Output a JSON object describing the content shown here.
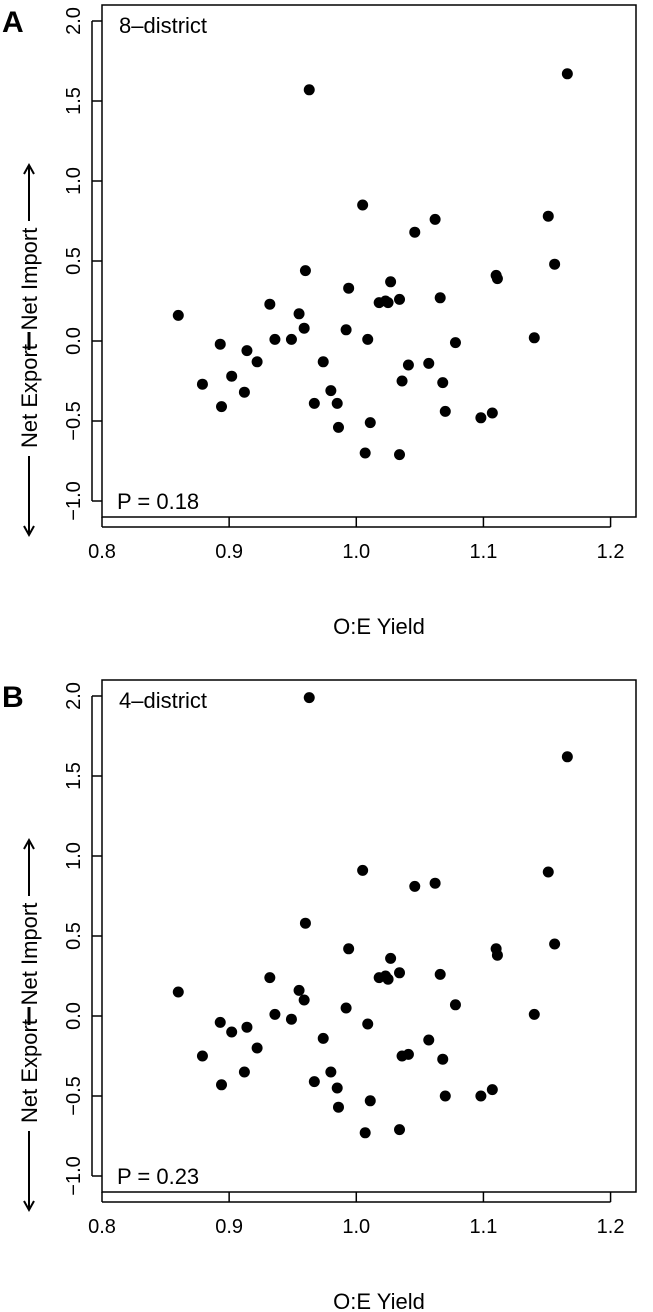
{
  "chart_data": [
    {
      "type": "scatter",
      "panel_label": "A",
      "title": "8–district",
      "annotation": "P = 0.18",
      "xlabel": "O:E Yield",
      "ylabel_bottom": "Net Export",
      "ylabel_top": "Net Import",
      "xlim": [
        0.8,
        1.22
      ],
      "ylim": [
        -1.1,
        2.1
      ],
      "xticks": [
        "0.8",
        "0.9",
        "1.0",
        "1.1",
        "1.2"
      ],
      "yticks": [
        "−1.0",
        "−0.5",
        "0.0",
        "0.5",
        "1.0",
        "1.5",
        "2.0"
      ],
      "points": [
        [
          0.86,
          0.16
        ],
        [
          0.879,
          -0.27
        ],
        [
          0.893,
          -0.02
        ],
        [
          0.894,
          -0.41
        ],
        [
          0.902,
          -0.22
        ],
        [
          0.912,
          -0.32
        ],
        [
          0.914,
          -0.06
        ],
        [
          0.922,
          -0.13
        ],
        [
          0.932,
          0.23
        ],
        [
          0.936,
          0.01
        ],
        [
          0.949,
          0.01
        ],
        [
          0.955,
          0.17
        ],
        [
          0.959,
          0.08
        ],
        [
          0.96,
          0.44
        ],
        [
          0.963,
          1.57
        ],
        [
          0.967,
          -0.39
        ],
        [
          0.974,
          -0.13
        ],
        [
          0.98,
          -0.31
        ],
        [
          0.985,
          -0.39
        ],
        [
          0.986,
          -0.54
        ],
        [
          0.992,
          0.07
        ],
        [
          0.994,
          0.33
        ],
        [
          1.005,
          0.85
        ],
        [
          1.007,
          -0.7
        ],
        [
          1.009,
          0.01
        ],
        [
          1.011,
          -0.51
        ],
        [
          1.018,
          0.24
        ],
        [
          1.023,
          0.25
        ],
        [
          1.025,
          0.24
        ],
        [
          1.027,
          0.37
        ],
        [
          1.034,
          0.26
        ],
        [
          1.034,
          -0.71
        ],
        [
          1.036,
          -0.25
        ],
        [
          1.041,
          -0.15
        ],
        [
          1.046,
          0.68
        ],
        [
          1.057,
          -0.14
        ],
        [
          1.062,
          0.76
        ],
        [
          1.066,
          0.27
        ],
        [
          1.068,
          -0.26
        ],
        [
          1.07,
          -0.44
        ],
        [
          1.078,
          -0.01
        ],
        [
          1.098,
          -0.48
        ],
        [
          1.107,
          -0.45
        ],
        [
          1.11,
          0.41
        ],
        [
          1.111,
          0.39
        ],
        [
          1.14,
          0.02
        ],
        [
          1.151,
          0.78
        ],
        [
          1.156,
          0.48
        ],
        [
          1.166,
          1.67
        ]
      ]
    },
    {
      "type": "scatter",
      "panel_label": "B",
      "title": "4–district",
      "annotation": "P = 0.23",
      "xlabel": "O:E Yield",
      "ylabel_bottom": "Net Export",
      "ylabel_top": "Net Import",
      "xlim": [
        0.8,
        1.22
      ],
      "ylim": [
        -1.1,
        2.1
      ],
      "xticks": [
        "0.8",
        "0.9",
        "1.0",
        "1.1",
        "1.2"
      ],
      "yticks": [
        "−1.0",
        "−0.5",
        "0.0",
        "0.5",
        "1.0",
        "1.5",
        "2.0"
      ],
      "points": [
        [
          0.86,
          0.15
        ],
        [
          0.879,
          -0.25
        ],
        [
          0.893,
          -0.04
        ],
        [
          0.894,
          -0.43
        ],
        [
          0.902,
          -0.1
        ],
        [
          0.912,
          -0.35
        ],
        [
          0.914,
          -0.07
        ],
        [
          0.922,
          -0.2
        ],
        [
          0.932,
          0.24
        ],
        [
          0.936,
          0.01
        ],
        [
          0.949,
          -0.02
        ],
        [
          0.955,
          0.16
        ],
        [
          0.959,
          0.1
        ],
        [
          0.96,
          0.58
        ],
        [
          0.963,
          1.99
        ],
        [
          0.967,
          -0.41
        ],
        [
          0.974,
          -0.14
        ],
        [
          0.98,
          -0.35
        ],
        [
          0.985,
          -0.45
        ],
        [
          0.986,
          -0.57
        ],
        [
          0.992,
          0.05
        ],
        [
          0.994,
          0.42
        ],
        [
          1.005,
          0.91
        ],
        [
          1.007,
          -0.73
        ],
        [
          1.009,
          -0.05
        ],
        [
          1.011,
          -0.53
        ],
        [
          1.018,
          0.24
        ],
        [
          1.023,
          0.25
        ],
        [
          1.025,
          0.23
        ],
        [
          1.027,
          0.36
        ],
        [
          1.034,
          0.27
        ],
        [
          1.034,
          -0.71
        ],
        [
          1.036,
          -0.25
        ],
        [
          1.041,
          -0.24
        ],
        [
          1.046,
          0.81
        ],
        [
          1.057,
          -0.15
        ],
        [
          1.062,
          0.83
        ],
        [
          1.066,
          0.26
        ],
        [
          1.068,
          -0.27
        ],
        [
          1.07,
          -0.5
        ],
        [
          1.078,
          0.07
        ],
        [
          1.098,
          -0.5
        ],
        [
          1.107,
          -0.46
        ],
        [
          1.11,
          0.42
        ],
        [
          1.111,
          0.38
        ],
        [
          1.14,
          0.01
        ],
        [
          1.151,
          0.9
        ],
        [
          1.156,
          0.45
        ],
        [
          1.166,
          1.62
        ]
      ]
    }
  ]
}
